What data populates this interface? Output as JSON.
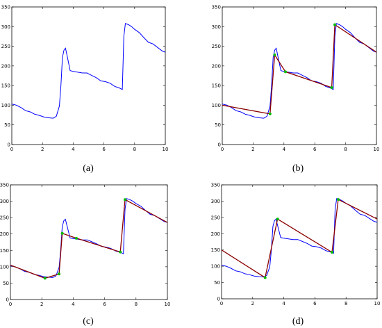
{
  "chart_data": [
    {
      "type": "line",
      "panel_label": "(a)",
      "xlim": [
        0,
        10
      ],
      "ylim": [
        0,
        350
      ],
      "xticks": [
        "0",
        "2",
        "4",
        "6",
        "8",
        "10"
      ],
      "yticks": [
        "0",
        "50",
        "100",
        "150",
        "200",
        "250",
        "300",
        "350"
      ],
      "colors": {
        "signal": "#0000ff"
      },
      "series": [
        {
          "role": "signal",
          "x": [
            0,
            0.3,
            0.6,
            0.9,
            1.2,
            1.5,
            1.8,
            2.1,
            2.4,
            2.7,
            2.9,
            3.1,
            3.2,
            3.3,
            3.4,
            3.5,
            3.6,
            3.8,
            4.0,
            4.3,
            4.6,
            4.9,
            5.2,
            5.5,
            5.8,
            6.1,
            6.4,
            6.7,
            7.0,
            7.2,
            7.3,
            7.4,
            7.6,
            7.8,
            8.0,
            8.3,
            8.6,
            8.9,
            9.2,
            9.5,
            9.8,
            10.0
          ],
          "y": [
            103,
            100,
            94,
            86,
            83,
            77,
            74,
            70,
            68,
            67,
            72,
            98,
            150,
            222,
            240,
            245,
            226,
            188,
            186,
            184,
            182,
            182,
            176,
            170,
            162,
            160,
            156,
            148,
            144,
            140,
            275,
            308,
            305,
            300,
            293,
            285,
            272,
            260,
            256,
            247,
            238,
            235
          ]
        }
      ]
    },
    {
      "type": "line",
      "panel_label": "(b)",
      "xlim": [
        0,
        10
      ],
      "ylim": [
        0,
        350
      ],
      "xticks": [
        "0",
        "2",
        "4",
        "6",
        "8",
        "10"
      ],
      "yticks": [
        "0",
        "50",
        "100",
        "150",
        "200",
        "250",
        "300",
        "350"
      ],
      "colors": {
        "signal": "#0000ff",
        "fit": "#8b0000",
        "breakpoint": "#00bb00"
      },
      "series": [
        {
          "role": "signal",
          "x": [
            0,
            0.3,
            0.6,
            0.9,
            1.2,
            1.5,
            1.8,
            2.1,
            2.4,
            2.7,
            2.9,
            3.1,
            3.2,
            3.3,
            3.4,
            3.5,
            3.6,
            3.8,
            4.0,
            4.3,
            4.6,
            4.9,
            5.2,
            5.5,
            5.8,
            6.1,
            6.4,
            6.7,
            7.0,
            7.2,
            7.3,
            7.4,
            7.6,
            7.8,
            8.0,
            8.3,
            8.6,
            8.9,
            9.2,
            9.5,
            9.8,
            10.0
          ],
          "y": [
            103,
            100,
            94,
            86,
            83,
            77,
            74,
            70,
            68,
            67,
            72,
            98,
            150,
            222,
            240,
            245,
            226,
            188,
            186,
            184,
            182,
            182,
            176,
            170,
            162,
            160,
            156,
            148,
            144,
            140,
            275,
            308,
            305,
            300,
            293,
            285,
            272,
            260,
            256,
            247,
            238,
            235
          ]
        },
        {
          "role": "fit",
          "x": [
            0,
            3.1,
            3.4,
            4.1,
            7.1,
            7.3,
            10.0
          ],
          "y": [
            100,
            78,
            228,
            185,
            145,
            305,
            235
          ]
        }
      ]
    },
    {
      "type": "line",
      "panel_label": "(c)",
      "xlim": [
        0,
        10
      ],
      "ylim": [
        0,
        350
      ],
      "xticks": [
        "0",
        "2",
        "4",
        "6",
        "8",
        "10"
      ],
      "yticks": [
        "0",
        "50",
        "100",
        "150",
        "200",
        "250",
        "300",
        "350"
      ],
      "colors": {
        "signal": "#0000ff",
        "fit": "#8b0000",
        "breakpoint": "#00bb00"
      },
      "series": [
        {
          "role": "signal",
          "x": [
            0,
            0.3,
            0.6,
            0.9,
            1.2,
            1.5,
            1.8,
            2.1,
            2.4,
            2.7,
            2.9,
            3.1,
            3.2,
            3.3,
            3.4,
            3.5,
            3.6,
            3.8,
            4.0,
            4.3,
            4.6,
            4.9,
            5.2,
            5.5,
            5.8,
            6.1,
            6.4,
            6.7,
            7.0,
            7.2,
            7.3,
            7.4,
            7.6,
            7.8,
            8.0,
            8.3,
            8.6,
            8.9,
            9.2,
            9.5,
            9.8,
            10.0
          ],
          "y": [
            103,
            100,
            94,
            86,
            83,
            77,
            74,
            70,
            68,
            67,
            72,
            98,
            150,
            222,
            240,
            245,
            226,
            188,
            186,
            184,
            182,
            182,
            176,
            170,
            162,
            160,
            156,
            148,
            144,
            140,
            275,
            308,
            305,
            300,
            293,
            285,
            272,
            260,
            256,
            247,
            238,
            235
          ]
        },
        {
          "role": "fit",
          "x": [
            0,
            2.2,
            3.1,
            3.3,
            4.2,
            7.0,
            7.3,
            10.0
          ],
          "y": [
            105,
            65,
            78,
            202,
            187,
            145,
            305,
            235
          ]
        }
      ]
    },
    {
      "type": "line",
      "panel_label": "(d)",
      "xlim": [
        0,
        10
      ],
      "ylim": [
        0,
        350
      ],
      "xticks": [
        "0",
        "2",
        "4",
        "6",
        "8",
        "10"
      ],
      "yticks": [
        "0",
        "50",
        "100",
        "150",
        "200",
        "250",
        "300",
        "350"
      ],
      "colors": {
        "signal": "#0000ff",
        "fit": "#8b0000",
        "breakpoint": "#00bb00"
      },
      "series": [
        {
          "role": "signal",
          "x": [
            0,
            0.3,
            0.6,
            0.9,
            1.2,
            1.5,
            1.8,
            2.1,
            2.4,
            2.7,
            2.9,
            3.1,
            3.2,
            3.3,
            3.4,
            3.5,
            3.6,
            3.8,
            4.0,
            4.3,
            4.6,
            4.9,
            5.2,
            5.5,
            5.8,
            6.1,
            6.4,
            6.7,
            7.0,
            7.2,
            7.3,
            7.4,
            7.6,
            7.8,
            8.0,
            8.3,
            8.6,
            8.9,
            9.2,
            9.5,
            9.8,
            10.0
          ],
          "y": [
            103,
            100,
            94,
            86,
            83,
            77,
            74,
            70,
            68,
            67,
            72,
            98,
            150,
            222,
            240,
            245,
            226,
            188,
            186,
            184,
            182,
            182,
            176,
            170,
            162,
            160,
            156,
            148,
            144,
            140,
            275,
            308,
            305,
            300,
            293,
            285,
            272,
            260,
            256,
            247,
            238,
            235
          ]
        },
        {
          "role": "fit",
          "x": [
            0,
            2.8,
            3.6,
            7.1,
            7.5,
            10.0
          ],
          "y": [
            150,
            65,
            245,
            143,
            305,
            245
          ]
        }
      ]
    }
  ]
}
